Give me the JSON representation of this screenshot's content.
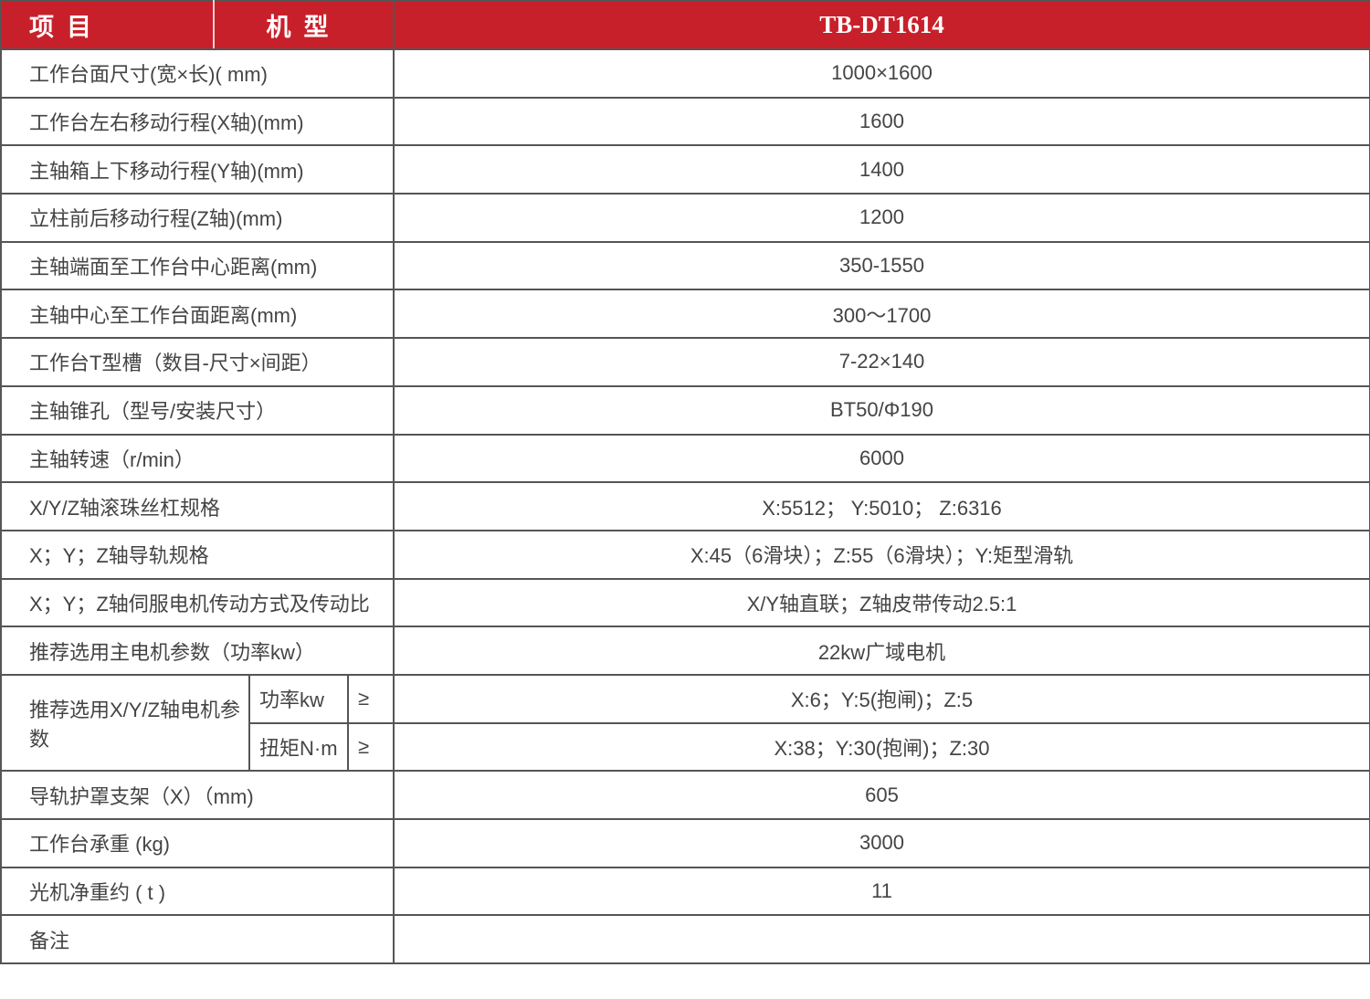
{
  "header": {
    "item": "项目",
    "model_label": "机型",
    "model": "TB-DT1614"
  },
  "rows": [
    {
      "label": "工作台面尺寸(宽×长)( mm)",
      "value": "1000×1600"
    },
    {
      "label": "工作台左右移动行程(X轴)(mm)",
      "value": "1600"
    },
    {
      "label": "主轴箱上下移动行程(Y轴)(mm)",
      "value": "1400"
    },
    {
      "label": "立柱前后移动行程(Z轴)(mm)",
      "value": "1200"
    },
    {
      "label": "主轴端面至工作台中心距离(mm)",
      "value": "350-1550"
    },
    {
      "label": "主轴中心至工作台面距离(mm)",
      "value": "300～1700"
    },
    {
      "label": "工作台T型槽（数目-尺寸×间距）",
      "value": "7-22×140"
    },
    {
      "label": "主轴锥孔（型号/安装尺寸）",
      "value": "BT50/Φ190"
    },
    {
      "label": "主轴转速（r/min）",
      "value": "6000"
    },
    {
      "label": "X/Y/Z轴滚珠丝杠规格",
      "value": "X:5512；  Y:5010；  Z:6316"
    },
    {
      "label": "X；Y；Z轴导轨规格",
      "value": "X:45（6滑块）；Z:55（6滑块）；Y:矩型滑轨"
    },
    {
      "label": "X；Y；Z轴伺服电机传动方式及传动比",
      "value": "X/Y轴直联；Z轴皮带传动2.5:1"
    },
    {
      "label": "推荐选用主电机参数（功率kw）",
      "value": "22kw广域电机"
    }
  ],
  "motor": {
    "label": "推荐选用X/Y/Z轴电机参数",
    "sub": [
      {
        "label": "功率kw",
        "op": "≥",
        "value": "X:6；Y:5(抱闸)；Z:5"
      },
      {
        "label": "扭矩N·m",
        "op": "≥",
        "value": "X:38；Y:30(抱闸)；Z:30"
      }
    ]
  },
  "rows2": [
    {
      "label": "导轨护罩支架（X）（mm)",
      "value": "605"
    },
    {
      "label": "工作台承重 (kg)",
      "value": "3000"
    },
    {
      "label": "光机净重约 ( t )",
      "value": "11"
    },
    {
      "label": "备注",
      "value": ""
    }
  ],
  "colors": {
    "header_bg": "#c8202a"
  }
}
